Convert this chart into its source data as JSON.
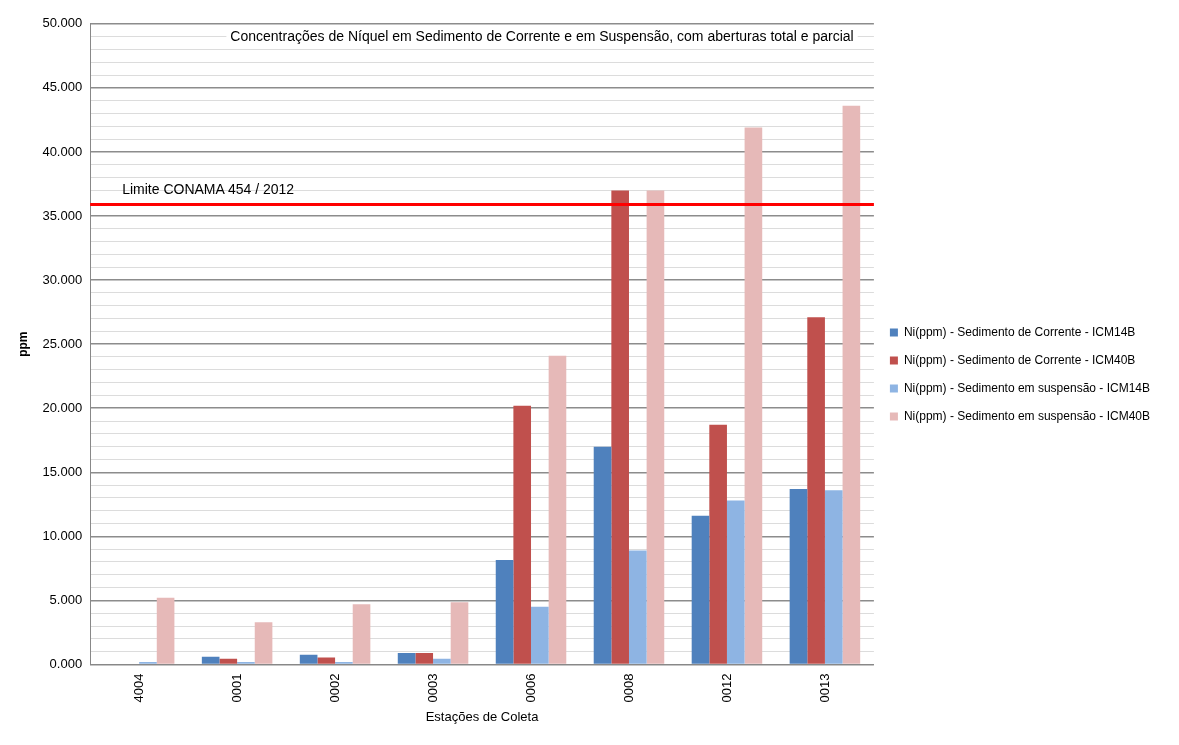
{
  "chart_data": {
    "type": "bar",
    "title": "Concentrações de Níquel em Sedimento de Corrente e em Suspensão, com aberturas total e parcial",
    "xlabel": "Estações de Coleta",
    "ylabel": "ppm",
    "categories": [
      "4004",
      "0001",
      "0002",
      "0003",
      "0006",
      "0008",
      "0012",
      "0013"
    ],
    "series": [
      {
        "name": "Ni(ppm) - Sedimento de Corrente - ICM14B",
        "color": "#4f81bd",
        "values": [
          0,
          0.6,
          0.75,
          0.9,
          8.15,
          17.0,
          11.6,
          13.7
        ]
      },
      {
        "name": "Ni(ppm) - Sedimento de Corrente - ICM40B",
        "color": "#c0504d",
        "values": [
          0,
          0.45,
          0.55,
          0.9,
          20.2,
          37.0,
          18.7,
          27.1
        ]
      },
      {
        "name": "Ni(ppm) - Sedimento em suspensão - ICM14B",
        "color": "#8eb4e3",
        "values": [
          0.2,
          0.2,
          0.2,
          0.45,
          4.5,
          8.9,
          12.8,
          13.6
        ]
      },
      {
        "name": "Ni(ppm) - Sedimento em suspensão - ICM40B",
        "color": "#e6b9b8",
        "values": [
          5.2,
          3.3,
          4.7,
          4.85,
          24.1,
          37.0,
          41.9,
          43.6
        ]
      }
    ],
    "ylim": [
      0,
      50
    ],
    "yticks": [
      {
        "value": 0,
        "label": "0.000"
      },
      {
        "value": 1,
        "label": null
      },
      {
        "value": 2,
        "label": null
      },
      {
        "value": 3,
        "label": null
      },
      {
        "value": 4,
        "label": null
      },
      {
        "value": 5,
        "label": "5.000"
      },
      {
        "value": 6,
        "label": null
      },
      {
        "value": 7,
        "label": null
      },
      {
        "value": 8,
        "label": null
      },
      {
        "value": 9,
        "label": null
      },
      {
        "value": 10,
        "label": "10.000"
      },
      {
        "value": 11,
        "label": null
      },
      {
        "value": 12,
        "label": null
      },
      {
        "value": 13,
        "label": null
      },
      {
        "value": 14,
        "label": null
      },
      {
        "value": 15,
        "label": "15.000"
      },
      {
        "value": 16,
        "label": null
      },
      {
        "value": 17,
        "label": null
      },
      {
        "value": 18,
        "label": null
      },
      {
        "value": 19,
        "label": null
      },
      {
        "value": 20,
        "label": "20.000"
      },
      {
        "value": 21,
        "label": null
      },
      {
        "value": 22,
        "label": null
      },
      {
        "value": 23,
        "label": null
      },
      {
        "value": 24,
        "label": null
      },
      {
        "value": 25,
        "label": "25.000"
      },
      {
        "value": 26,
        "label": null
      },
      {
        "value": 27,
        "label": null
      },
      {
        "value": 28,
        "label": null
      },
      {
        "value": 29,
        "label": null
      },
      {
        "value": 30,
        "label": "30.000"
      },
      {
        "value": 31,
        "label": null
      },
      {
        "value": 32,
        "label": null
      },
      {
        "value": 33,
        "label": null
      },
      {
        "value": 34,
        "label": null
      },
      {
        "value": 35,
        "label": "35.000"
      },
      {
        "value": 36,
        "label": null
      },
      {
        "value": 37,
        "label": null
      },
      {
        "value": 38,
        "label": null
      },
      {
        "value": 39,
        "label": null
      },
      {
        "value": 40,
        "label": "40.000"
      },
      {
        "value": 41,
        "label": null
      },
      {
        "value": 42,
        "label": null
      },
      {
        "value": 43,
        "label": null
      },
      {
        "value": 44,
        "label": null
      },
      {
        "value": 45,
        "label": "45.000"
      },
      {
        "value": 46,
        "label": null
      },
      {
        "value": 47,
        "label": null
      },
      {
        "value": 48,
        "label": null
      },
      {
        "value": 49,
        "label": null
      },
      {
        "value": 50,
        "label": "50.000"
      }
    ],
    "grid": "y",
    "legend": "right",
    "ref_lines": [
      {
        "axis": "y",
        "value": 35.9,
        "label": "Limite CONAMA 454 / 2012",
        "color": "#ff0000"
      }
    ]
  }
}
